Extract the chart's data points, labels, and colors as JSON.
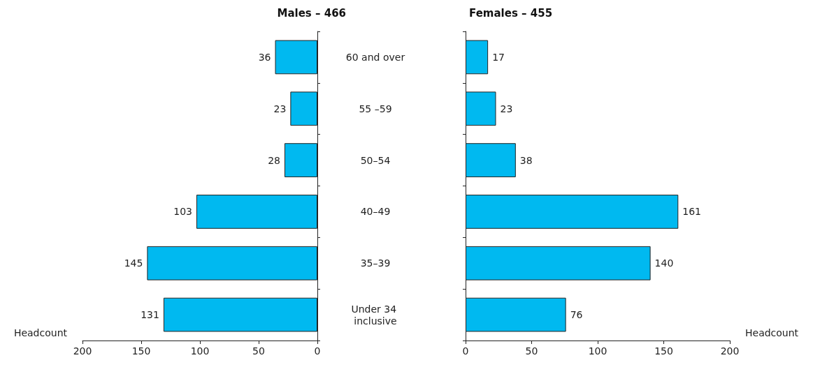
{
  "chart_data": [
    {
      "type": "bar",
      "orientation": "horizontal",
      "title": "Males – 466",
      "xlabel": "Headcount",
      "categories": [
        "60 and over",
        "55 –59",
        "50–54",
        "40–49",
        "35–39",
        "Under 34 inclusive"
      ],
      "values": [
        36,
        23,
        28,
        103,
        145,
        131
      ],
      "color": "#00b9f0",
      "xlim": [
        200,
        0
      ],
      "xticks": [
        200,
        150,
        100,
        50,
        0
      ],
      "data_labels": true,
      "grid": false
    },
    {
      "type": "bar",
      "orientation": "horizontal",
      "title": "Females – 455",
      "xlabel": "Headcount",
      "categories": [
        "60 and over",
        "55 –59",
        "50–54",
        "40–49",
        "35–39",
        "Under 34 inclusive"
      ],
      "values": [
        17,
        23,
        38,
        161,
        140,
        76
      ],
      "color": "#00b9f0",
      "xlim": [
        0,
        200
      ],
      "xticks": [
        0,
        50,
        100,
        150,
        200
      ],
      "data_labels": true,
      "grid": false,
      "tick_labels": "x"
    }
  ]
}
